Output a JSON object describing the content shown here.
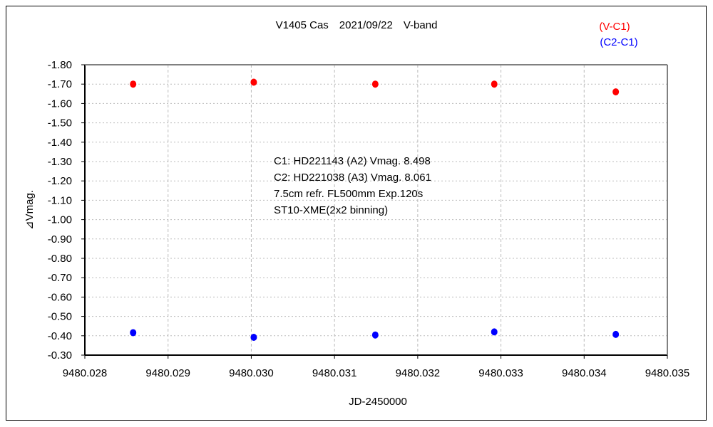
{
  "chart_data": {
    "type": "scatter",
    "title": "V1405 Cas　2021/09/22　V-band",
    "xlabel": "JD-2450000",
    "ylabel": "⊿Vmag.",
    "xlim": [
      9480.028,
      9480.035
    ],
    "ylim": [
      -1.8,
      -0.3
    ],
    "y_inverted": true,
    "xticks": [
      "9480.028",
      "9480.029",
      "9480.030",
      "9480.031",
      "9480.032",
      "9480.033",
      "9480.034",
      "9480.035"
    ],
    "yticks": [
      "-1.80",
      "-1.70",
      "-1.60",
      "-1.50",
      "-1.40",
      "-1.30",
      "-1.20",
      "-1.10",
      "-1.00",
      "-0.90",
      "-0.80",
      "-0.70",
      "-0.60",
      "-0.50",
      "-0.40",
      "-0.30"
    ],
    "grid": true,
    "legend_position": "top-right",
    "series": [
      {
        "name": "(V-C1)",
        "color": "#ff0000",
        "x": [
          9480.02858,
          9480.03003,
          9480.03149,
          9480.03292,
          9480.03438
        ],
        "y": [
          -1.7,
          -1.71,
          -1.7,
          -1.7,
          -1.66
        ]
      },
      {
        "name": "(C2-C1)",
        "color": "#0000ff",
        "x": [
          9480.02858,
          9480.03003,
          9480.03149,
          9480.03292,
          9480.03438
        ],
        "y": [
          -0.416,
          -0.392,
          -0.404,
          -0.42,
          -0.407
        ]
      }
    ],
    "annotations": [
      "C1: HD221143 (A2) Vmag. 8.498",
      "C2: HD221038 (A3) Vmag. 8.061",
      "7.5cm refr. FL500mm Exp.120s",
      "ST10-XME(2x2 binning)"
    ]
  }
}
